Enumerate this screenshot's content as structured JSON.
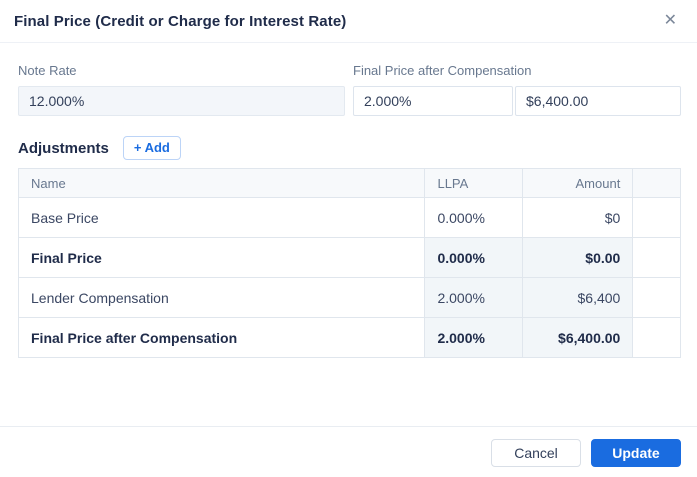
{
  "modal": {
    "title": "Final Price (Credit or Charge for Interest Rate)",
    "close_icon": "✕"
  },
  "fields": {
    "note_rate": {
      "label": "Note Rate",
      "value": "12.000%"
    },
    "final_price_after_compensation": {
      "label": "Final Price after Compensation",
      "percent_value": "2.000%",
      "amount_value": "$6,400.00"
    }
  },
  "adjustments": {
    "heading": "Adjustments",
    "add_button_label": "+ Add"
  },
  "table": {
    "columns": [
      "Name",
      "LLPA",
      "Amount",
      ""
    ],
    "rows": [
      {
        "name": "Base Price",
        "llpa": "0.000%",
        "amount": "$0"
      },
      {
        "name": "Final Price",
        "llpa": "0.000%",
        "amount": "$0.00"
      },
      {
        "name": "Lender Compensation",
        "llpa": "2.000%",
        "amount": "$6,400"
      },
      {
        "name": "Final Price after Compensation",
        "llpa": "2.000%",
        "amount": "$6,400.00"
      }
    ]
  },
  "footer": {
    "cancel_label": "Cancel",
    "update_label": "Update"
  },
  "colors": {
    "accent_blue": "#1a6ce0",
    "title_text": "#202c4a",
    "muted_label": "#68788f",
    "table_border": "#e0e6ed",
    "readonly_bg": "#f3f6fa",
    "shaded_cell_bg": "#f2f6f9"
  }
}
